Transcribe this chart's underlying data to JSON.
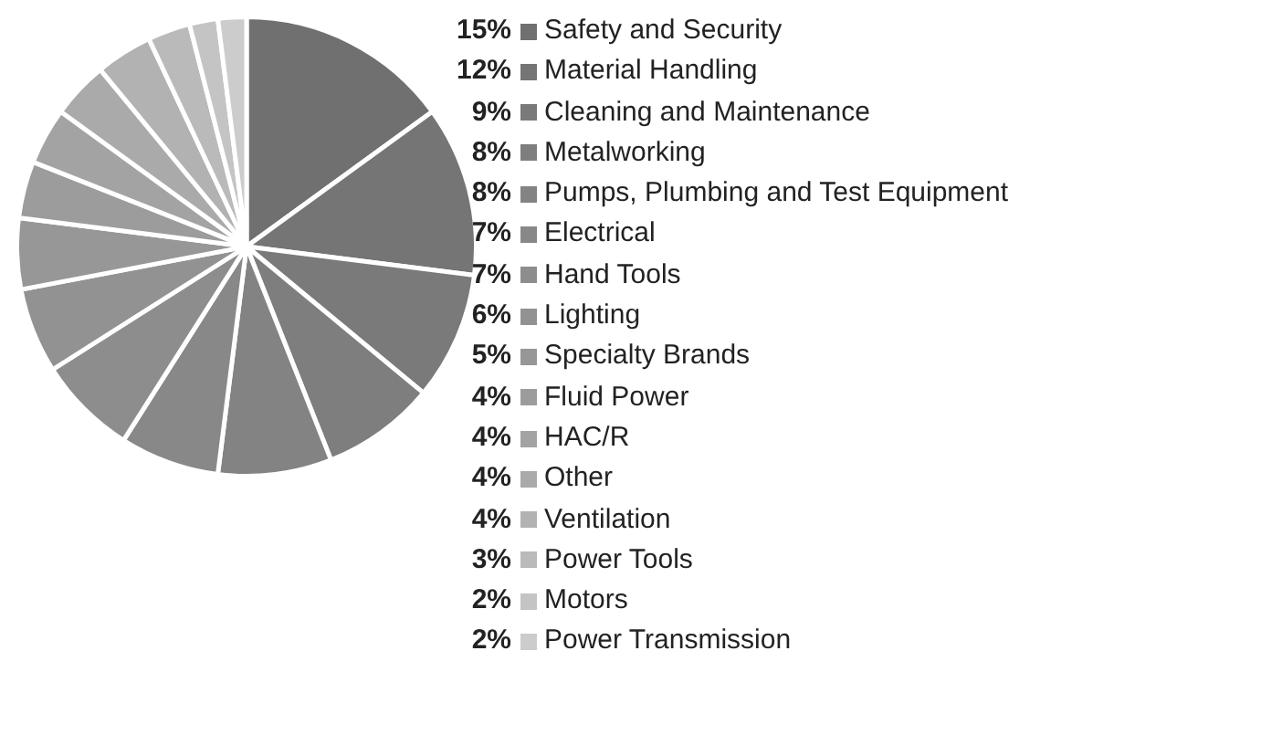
{
  "chart_data": {
    "type": "pie",
    "categories": [
      "Safety and Security",
      "Material Handling",
      "Cleaning and Maintenance",
      "Metalworking",
      "Pumps, Plumbing and Test Equipment",
      "Electrical",
      "Hand Tools",
      "Lighting",
      "Specialty Brands",
      "Fluid Power",
      "HAC/R",
      "Other",
      "Ventilation",
      "Power Tools",
      "Motors",
      "Power Transmission"
    ],
    "values": [
      15,
      12,
      9,
      8,
      8,
      7,
      7,
      6,
      5,
      4,
      4,
      4,
      4,
      3,
      2,
      2
    ],
    "value_labels": [
      "15%",
      "12%",
      "9%",
      "8%",
      "8%",
      "7%",
      "7%",
      "6%",
      "5%",
      "4%",
      "4%",
      "4%",
      "4%",
      "3%",
      "2%",
      "2%"
    ],
    "colors": [
      "#707070",
      "#757575",
      "#7a7a7a",
      "#7e7e7e",
      "#838383",
      "#888888",
      "#8d8d8d",
      "#929292",
      "#979797",
      "#9c9c9c",
      "#a3a3a3",
      "#aaaaaa",
      "#b2b2b2",
      "#bababa",
      "#c4c4c4",
      "#cccccc"
    ],
    "legend": "right"
  }
}
